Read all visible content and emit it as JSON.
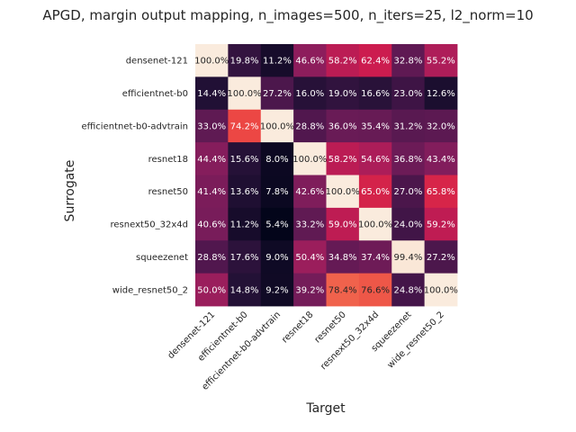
{
  "chart_data": {
    "type": "heatmap",
    "title": "APGD, margin output mapping, n_images=500, n_iters=25, l2_norm=10",
    "xlabel": "Target",
    "ylabel": "Surrogate",
    "x_categories": [
      "densenet-121",
      "efficientnet-b0",
      "efficientnet-b0-advtrain",
      "resnet18",
      "resnet50",
      "resnext50_32x4d",
      "squeezenet",
      "wide_resnet50_2"
    ],
    "y_categories": [
      "densenet-121",
      "efficientnet-b0",
      "efficientnet-b0-advtrain",
      "resnet18",
      "resnet50",
      "resnext50_32x4d",
      "squeezenet",
      "wide_resnet50_2"
    ],
    "value_format": "percent_1dp",
    "colormap": "rocket",
    "colorbar": false,
    "values": [
      [
        100.0,
        19.8,
        11.2,
        46.6,
        58.2,
        62.4,
        32.8,
        55.2
      ],
      [
        14.4,
        100.0,
        27.2,
        16.0,
        19.0,
        16.6,
        23.0,
        12.6
      ],
      [
        33.0,
        74.2,
        100.0,
        28.8,
        36.0,
        35.4,
        31.2,
        32.0
      ],
      [
        44.4,
        15.6,
        8.0,
        100.0,
        58.2,
        54.6,
        36.8,
        43.4
      ],
      [
        41.4,
        13.6,
        7.8,
        42.6,
        100.0,
        65.0,
        27.0,
        65.8
      ],
      [
        40.6,
        11.2,
        5.4,
        33.2,
        59.0,
        100.0,
        24.0,
        59.2
      ],
      [
        28.8,
        17.6,
        9.0,
        50.4,
        34.8,
        37.4,
        99.4,
        27.2
      ],
      [
        50.0,
        14.8,
        9.2,
        39.2,
        78.4,
        76.6,
        24.8,
        100.0
      ]
    ]
  }
}
